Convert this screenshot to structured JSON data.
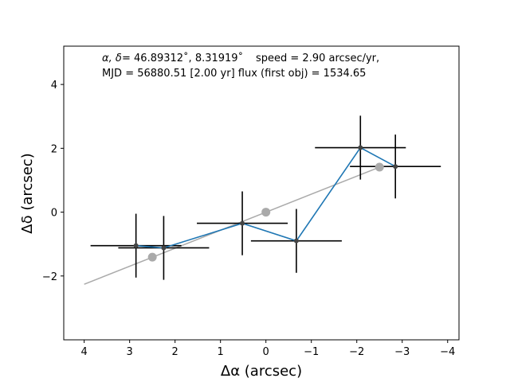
{
  "chart_data": {
    "type": "scatter",
    "title": "",
    "xlabel": "Δα (arcsec)",
    "ylabel": "Δδ (arcsec)",
    "xlim": [
      4.45,
      -4.25
    ],
    "ylim": [
      -4.0,
      5.2
    ],
    "x_ticks": [
      4,
      3,
      2,
      1,
      0,
      -1,
      -2,
      -3,
      -4
    ],
    "x_tick_labels": [
      "4",
      "3",
      "2",
      "1",
      "0",
      "−1",
      "−2",
      "−3",
      "−4"
    ],
    "y_ticks": [
      -2,
      0,
      2,
      4
    ],
    "y_tick_labels": [
      "−2",
      "0",
      "2",
      "4"
    ],
    "grid": false,
    "annotations": {
      "line1_left": "α, δ",
      "line1_mid": "= 46.89312˚, 8.31919˚",
      "line1_right": "speed = 2.90 arcsec/yr,",
      "line2": "MJD = 56880.51 [2.00 yr]   flux (first obj) = 1534.65"
    },
    "series": [
      {
        "kind": "observations",
        "color": "#1f77b4",
        "marker_color": "#444444",
        "x": [
          2.86,
          2.25,
          0.52,
          -0.67,
          -2.08,
          -2.85
        ],
        "y": [
          -1.05,
          -1.12,
          -0.35,
          -0.9,
          2.02,
          1.43
        ],
        "xerr": [
          1.0,
          1.0,
          1.0,
          1.0,
          1.0,
          1.0
        ],
        "yerr": [
          1.0,
          1.0,
          1.0,
          1.0,
          1.0,
          1.0
        ]
      },
      {
        "kind": "linear-fit",
        "color": "#aaaaaa",
        "x": [
          4.0,
          -2.5
        ],
        "y": [
          -2.26,
          1.41
        ]
      },
      {
        "kind": "fit-points",
        "color": "#aaaaaa",
        "x": [
          2.5,
          0.0,
          -2.5
        ],
        "y": [
          -1.41,
          0.0,
          1.41
        ]
      }
    ]
  }
}
